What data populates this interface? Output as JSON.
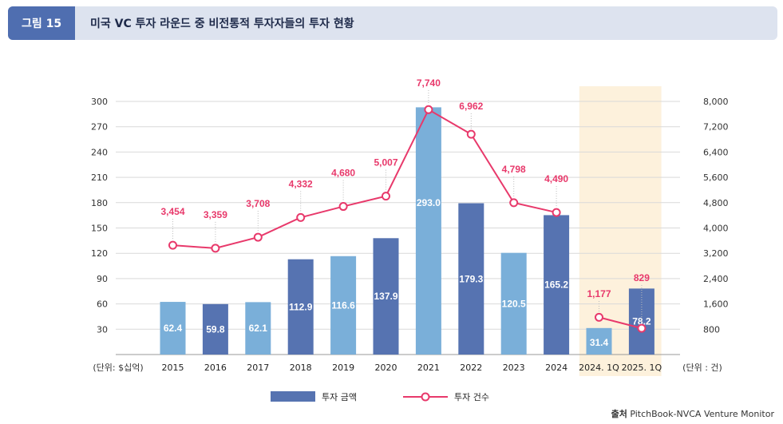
{
  "header": {
    "figure_label": "그림 15",
    "title": "미국 VC 투자 라운드 중 비전통적 투자자들의 투자 현황"
  },
  "source": {
    "label": "출처",
    "text": "PitchBook-NVCA Venture Monitor"
  },
  "chart_data": {
    "type": "bar",
    "categories": [
      "2015",
      "2016",
      "2017",
      "2018",
      "2019",
      "2020",
      "2021",
      "2022",
      "2023",
      "2024",
      "2024. 1Q",
      "2025. 1Q"
    ],
    "highlighted_categories": [
      "2024. 1Q",
      "2025. 1Q"
    ],
    "left_axis": {
      "unit_label": "(단위: $십억)",
      "ticks": [
        30,
        60,
        90,
        120,
        150,
        180,
        210,
        240,
        270,
        300
      ],
      "range": [
        0,
        300
      ]
    },
    "right_axis": {
      "unit_label": "(단위 : 건)",
      "ticks": [
        "800",
        "1,600",
        "2,400",
        "3,200",
        "4,000",
        "4,800",
        "5,600",
        "6,400",
        "7,200",
        "8,000"
      ],
      "range": [
        0,
        8000
      ]
    },
    "series": [
      {
        "name": "투자 금액",
        "kind": "bar",
        "axis": "left",
        "values": [
          62.4,
          59.8,
          62.1,
          112.9,
          116.6,
          137.9,
          293.0,
          179.3,
          120.5,
          165.2,
          31.4,
          78.2
        ],
        "labels": [
          "62.4",
          "59.8",
          "62.1",
          "112.9",
          "116.6",
          "137.9",
          "293.0",
          "179.3",
          "120.5",
          "165.2",
          "31.4",
          "78.2"
        ]
      },
      {
        "name": "투자 건수",
        "kind": "line",
        "axis": "right",
        "values": [
          3454,
          3359,
          3708,
          4332,
          4680,
          5007,
          7740,
          6962,
          4798,
          4490,
          1177,
          829
        ],
        "labels": [
          "3,454",
          "3,359",
          "3,708",
          "4,332",
          "4,680",
          "5,007",
          "7,740",
          "6,962",
          "4,798",
          "4,490",
          "1,177",
          "829"
        ]
      }
    ],
    "colors": {
      "bar_light": "#7aafd9",
      "bar_dark": "#5673b1",
      "line": "#e8396b",
      "highlight_bg": "#fdf1dc",
      "grid": "#d9d9d9"
    },
    "legend_position": "bottom-center"
  }
}
